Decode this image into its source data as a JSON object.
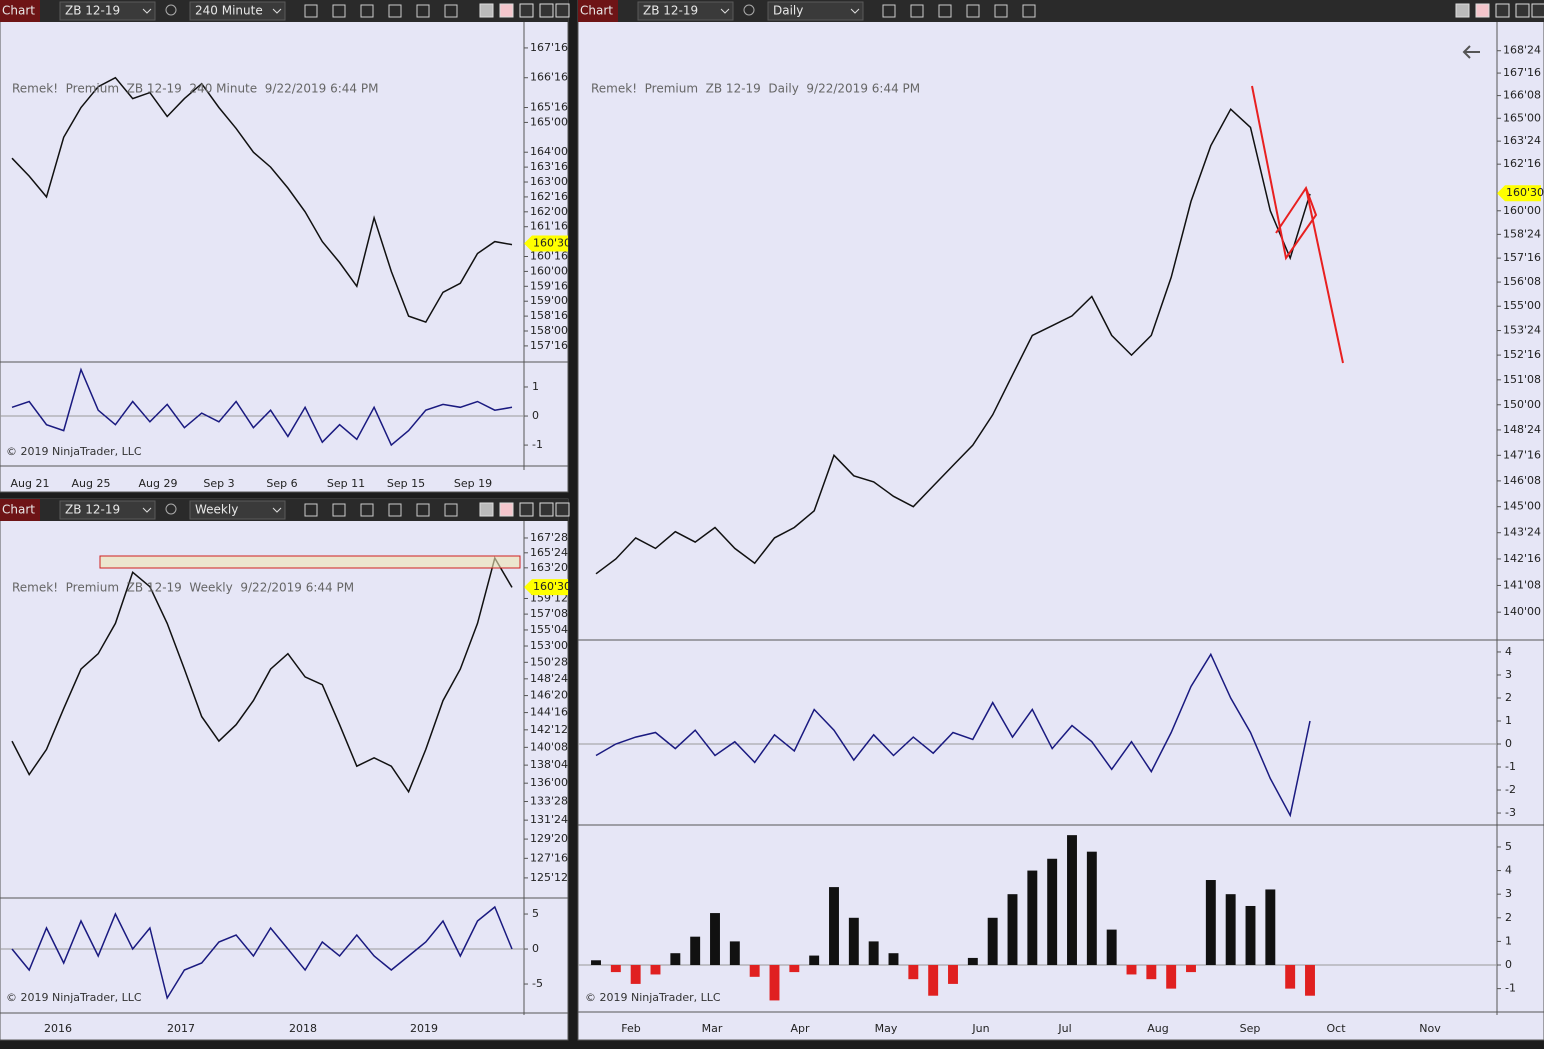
{
  "windows": [
    {
      "tab": "Chart",
      "instrument": "ZB 12-19",
      "interval": "240 Minute",
      "info": "Remek!  Premium  ZB 12-19  240 Minute  9/22/2019 6:44 PM",
      "copyright": "© 2019 NinjaTrader, LLC",
      "price_axis": {
        "scale": "linear",
        "ylim": [
          156.96,
          168.37
        ],
        "ticks": [
          {
            "value": 167.5,
            "label": "167'16"
          },
          {
            "value": 166.5,
            "label": "166'16"
          },
          {
            "value": 165.5,
            "label": "165'16"
          },
          {
            "value": 165,
            "label": "165'00"
          },
          {
            "value": 164,
            "label": "164'00"
          },
          {
            "value": 163.5,
            "label": "163'16"
          },
          {
            "value": 163,
            "label": "163'00"
          },
          {
            "value": 162.5,
            "label": "162'16"
          },
          {
            "value": 162,
            "label": "162'00"
          },
          {
            "value": 161.5,
            "label": "161'16"
          },
          {
            "value": 160.5,
            "label": "160'16"
          },
          {
            "value": 160,
            "label": "160'00"
          },
          {
            "value": 159.5,
            "label": "159'16"
          },
          {
            "value": 159,
            "label": "159'00"
          },
          {
            "value": 158.5,
            "label": "158'16"
          },
          {
            "value": 158,
            "label": "158'00"
          },
          {
            "value": 157.5,
            "label": "157'16"
          }
        ]
      },
      "last_price": {
        "value": 160.9375,
        "label": "160'30"
      },
      "closes": [
        163.8,
        163.2,
        162.5,
        164.5,
        165.5,
        166.2,
        166.5,
        165.8,
        166.0,
        165.2,
        165.8,
        166.3,
        165.5,
        164.8,
        164.0,
        163.5,
        162.8,
        162.0,
        161.0,
        160.3,
        159.5,
        161.8,
        160.0,
        158.5,
        158.3,
        159.3,
        159.6,
        160.6,
        161.0,
        160.9
      ],
      "oscillator": {
        "ylim": [
          -1.72,
          1.86
        ],
        "ticks": [
          1,
          0,
          -1
        ],
        "values": [
          0.3,
          0.5,
          -0.3,
          -0.5,
          1.6,
          0.2,
          -0.3,
          0.5,
          -0.2,
          0.4,
          -0.4,
          0.1,
          -0.2,
          0.5,
          -0.4,
          0.2,
          -0.7,
          0.3,
          -0.9,
          -0.3,
          -0.8,
          0.3,
          -1.0,
          -0.5,
          0.2,
          0.4,
          0.3,
          0.5,
          0.2,
          0.3
        ]
      },
      "dates": [
        "Aug 21",
        "Aug 25",
        "Aug 29",
        "Sep 3",
        "Sep 6",
        "Sep 11",
        "Sep 15",
        "Sep 19"
      ]
    },
    {
      "tab": "Chart",
      "instrument": "ZB 12-19",
      "interval": "Weekly",
      "info": "Remek!  Premium  ZB 12-19  Weekly  9/22/2019 6:44 PM",
      "copyright": "© 2019 NinjaTrader, LLC",
      "price_axis": {
        "scale": "log",
        "ylim": [
          123.23,
          170.34
        ],
        "ticks": [
          {
            "value": 167.875,
            "label": "167'28"
          },
          {
            "value": 165.75,
            "label": "165'24"
          },
          {
            "value": 163.625,
            "label": "163'20"
          },
          {
            "value": 159.375,
            "label": "159'12"
          },
          {
            "value": 157.25,
            "label": "157'08"
          },
          {
            "value": 155.125,
            "label": "155'04"
          },
          {
            "value": 153,
            "label": "153'00"
          },
          {
            "value": 150.875,
            "label": "150'28"
          },
          {
            "value": 148.75,
            "label": "148'24"
          },
          {
            "value": 146.625,
            "label": "146'20"
          },
          {
            "value": 144.5,
            "label": "144'16"
          },
          {
            "value": 142.375,
            "label": "142'12"
          },
          {
            "value": 140.25,
            "label": "140'08"
          },
          {
            "value": 138.125,
            "label": "138'04"
          },
          {
            "value": 136,
            "label": "136'00"
          },
          {
            "value": 133.875,
            "label": "133'28"
          },
          {
            "value": 131.75,
            "label": "131'24"
          },
          {
            "value": 129.625,
            "label": "129'20"
          },
          {
            "value": 127.5,
            "label": "127'16"
          },
          {
            "value": 125.375,
            "label": "125'12"
          }
        ]
      },
      "last_price": {
        "value": 160.9375,
        "label": "160'30"
      },
      "closes": [
        141,
        137,
        140,
        145,
        150,
        152,
        156,
        163,
        161,
        156,
        150,
        144,
        141,
        143,
        146,
        150,
        152,
        149,
        148,
        143,
        138,
        139,
        138,
        135,
        140,
        146,
        150,
        156,
        165,
        160.9
      ],
      "oscillator": {
        "ylim": [
          -9.14,
          7.29
        ],
        "ticks": [
          5,
          0,
          -5
        ],
        "values": [
          0,
          -3,
          3,
          -2,
          4,
          -1,
          5,
          0,
          3,
          -7,
          -3,
          -2,
          1,
          2,
          -1,
          3,
          0,
          -3,
          1,
          -1,
          2,
          -1,
          -3,
          -1,
          1,
          4,
          -1,
          4,
          6,
          0
        ]
      },
      "dates": [
        "2016",
        "2017",
        "2018",
        "2019"
      ]
    },
    {
      "tab": "Chart",
      "instrument": "ZB 12-19",
      "interval": "Daily",
      "info": "Remek!  Premium  ZB 12-19  Daily  9/22/2019 6:44 PM",
      "copyright": "© 2019 NinjaTrader, LLC",
      "price_axis": {
        "scale": "log",
        "ylim": [
          138.71,
          170.37
        ],
        "ticks": [
          {
            "value": 168.75,
            "label": "168'24"
          },
          {
            "value": 167.5,
            "label": "167'16"
          },
          {
            "value": 166.25,
            "label": "166'08"
          },
          {
            "value": 165,
            "label": "165'00"
          },
          {
            "value": 163.75,
            "label": "163'24"
          },
          {
            "value": 162.5,
            "label": "162'16"
          },
          {
            "value": 160,
            "label": "160'00"
          },
          {
            "value": 158.75,
            "label": "158'24"
          },
          {
            "value": 157.5,
            "label": "157'16"
          },
          {
            "value": 156.25,
            "label": "156'08"
          },
          {
            "value": 155,
            "label": "155'00"
          },
          {
            "value": 153.75,
            "label": "153'24"
          },
          {
            "value": 152.5,
            "label": "152'16"
          },
          {
            "value": 151.25,
            "label": "151'08"
          },
          {
            "value": 150,
            "label": "150'00"
          },
          {
            "value": 148.75,
            "label": "148'24"
          },
          {
            "value": 147.5,
            "label": "147'16"
          },
          {
            "value": 146.25,
            "label": "146'08"
          },
          {
            "value": 145,
            "label": "145'00"
          },
          {
            "value": 143.75,
            "label": "143'24"
          },
          {
            "value": 142.5,
            "label": "142'16"
          },
          {
            "value": 141.25,
            "label": "141'08"
          },
          {
            "value": 140,
            "label": "140'00"
          }
        ]
      },
      "last_price": {
        "value": 160.9375,
        "label": "160'30"
      },
      "closes": [
        141.8,
        142.5,
        143.5,
        143.0,
        143.8,
        143.3,
        144.0,
        143.0,
        142.3,
        143.5,
        144.0,
        144.8,
        147.5,
        146.5,
        146.2,
        145.5,
        145.0,
        146.0,
        147.0,
        148.0,
        149.5,
        151.5,
        153.5,
        154.0,
        154.5,
        155.5,
        153.5,
        152.5,
        153.5,
        156.5,
        160.5,
        163.5,
        165.5,
        164.5,
        160.0,
        157.5,
        160.9
      ],
      "oscillator": {
        "ylim": [
          -3.52,
          4.52
        ],
        "ticks": [
          4,
          3,
          2,
          1,
          0,
          -1,
          -2,
          -3
        ],
        "values": [
          -0.5,
          0,
          0.3,
          0.5,
          -0.2,
          0.6,
          -0.5,
          0.1,
          -0.8,
          0.4,
          -0.3,
          1.5,
          0.6,
          -0.7,
          0.4,
          -0.5,
          0.3,
          -0.4,
          0.5,
          0.2,
          1.8,
          0.3,
          1.5,
          -0.2,
          0.8,
          0.1,
          -1.1,
          0.1,
          -1.2,
          0.5,
          2.5,
          3.9,
          2.0,
          0.5,
          -1.5,
          -3.1,
          1.0
        ]
      },
      "histogram": {
        "ylim": [
          -1.99,
          5.93
        ],
        "ticks": [
          5,
          4,
          3,
          2,
          1,
          0,
          -1
        ],
        "values": [
          0.2,
          -0.3,
          -0.8,
          -0.4,
          0.5,
          1.2,
          2.2,
          1.0,
          -0.5,
          -1.5,
          -0.3,
          0.4,
          3.3,
          2.0,
          1.0,
          0.5,
          -0.6,
          -1.3,
          -0.8,
          0.3,
          2.0,
          3.0,
          4.0,
          4.5,
          5.5,
          4.8,
          1.5,
          -0.4,
          -0.6,
          -1.0,
          -0.3,
          3.6,
          3.0,
          2.5,
          3.2,
          -1.0,
          -1.3
        ]
      },
      "dates": [
        "Feb",
        "Mar",
        "Apr",
        "May",
        "Jun",
        "Jul",
        "Aug",
        "Sep",
        "Oct",
        "Nov"
      ]
    }
  ]
}
